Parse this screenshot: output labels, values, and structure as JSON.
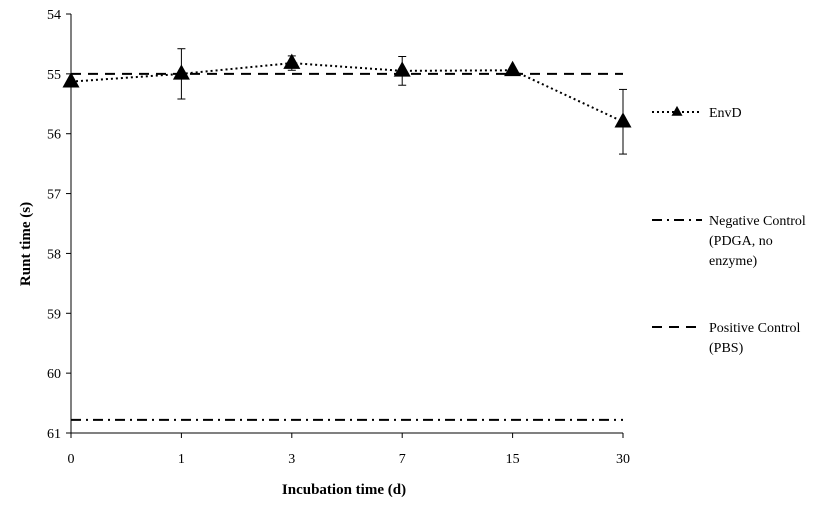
{
  "chart_data": {
    "type": "line",
    "xlabel": "Incubation  time (d)",
    "ylabel": "Runt time (s)",
    "categories": [
      "0",
      "1",
      "3",
      "7",
      "15",
      "30"
    ],
    "ylim": [
      54,
      61
    ],
    "y_inverted": true,
    "yticks": [
      "54",
      "55",
      "56",
      "57",
      "58",
      "59",
      "60",
      "61"
    ],
    "legend_position": "right",
    "grid": false,
    "series": [
      {
        "name": "EnvD",
        "style": "dotted",
        "marker": "triangle",
        "color": "#000000",
        "values": [
          55.13,
          55.0,
          54.82,
          54.95,
          54.94,
          55.8
        ],
        "error": [
          0.0,
          0.42,
          0.12,
          0.24,
          0.0,
          0.54
        ]
      },
      {
        "name": "Negative Control\n(PDGA, no\nenzyme)",
        "legend_lines": [
          "Negative Control",
          "(PDGA, no",
          "enzyme)"
        ],
        "style": "dash-dot",
        "color": "#000000",
        "values": [
          60.78,
          60.78,
          60.78,
          60.78,
          60.78,
          60.78
        ]
      },
      {
        "name": "Positive Control\n(PBS)",
        "legend_lines": [
          "Positive Control",
          "(PBS)"
        ],
        "style": "dashed",
        "color": "#000000",
        "values": [
          55.0,
          55.0,
          55.0,
          55.0,
          55.0,
          55.0
        ]
      }
    ]
  }
}
